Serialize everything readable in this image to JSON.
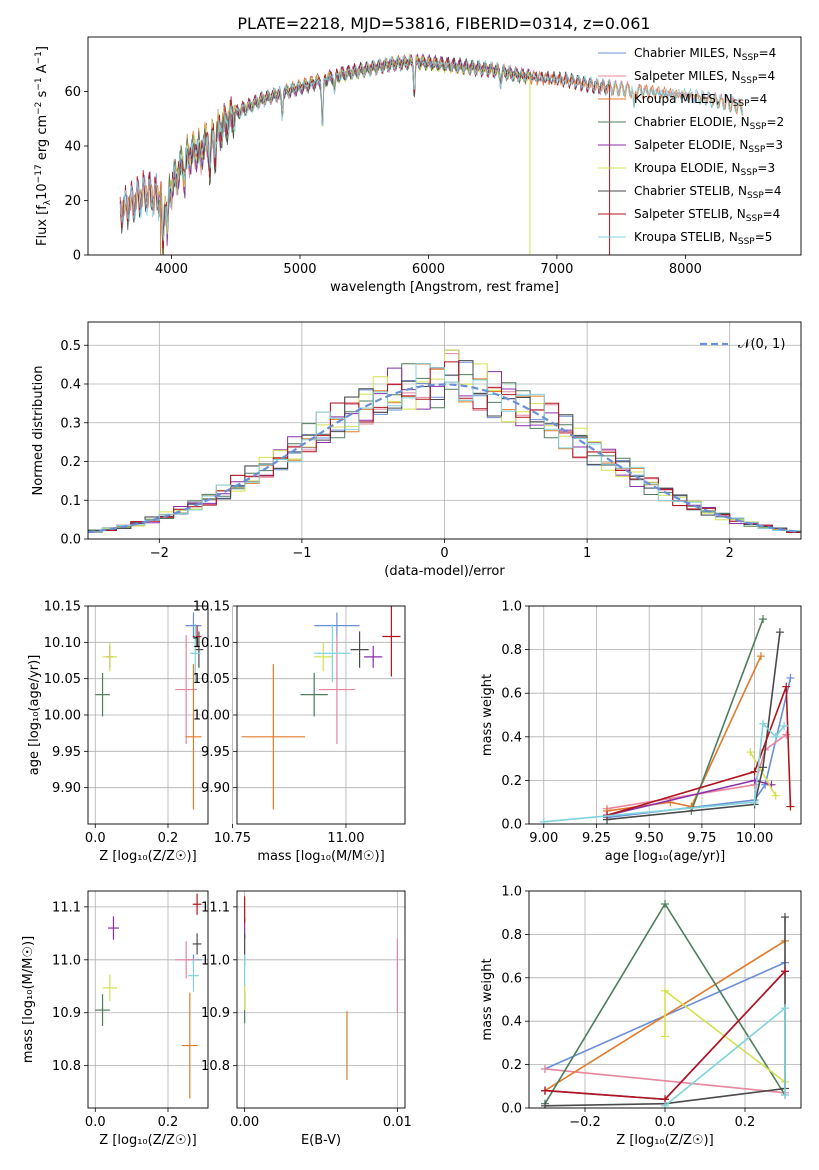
{
  "title": "PLATE=2218, MJD=53816, FIBERID=0314, z=0.061",
  "colors": [
    "#6a8fd8",
    "#e8859f",
    "#e07b2a",
    "#4f7d5c",
    "#8a2fa8",
    "#d4e050",
    "#4a4a4a",
    "#b0151e",
    "#7fd4dc"
  ],
  "chart_data": [
    {
      "id": "spectrum",
      "type": "line",
      "title": "PLATE=2218, MJD=53816, FIBERID=0314, z=0.061",
      "xlabel": "wavelength [Angstrom, rest frame]",
      "ylabel_parts": [
        "Flux [f",
        "λ",
        "10",
        "−17",
        " erg cm",
        "−2",
        " s",
        "−1",
        " A",
        "−1",
        "]"
      ],
      "xlim": [
        3350,
        8900
      ],
      "ylim": [
        0,
        80
      ],
      "xticks": [
        4000,
        5000,
        6000,
        7000,
        8000
      ],
      "yticks": [
        0,
        20,
        40,
        60
      ],
      "legend_position": "top-right",
      "legend": [
        {
          "label": "Chabrier MILES, N",
          "sub": "SSP",
          "suffix": "=4"
        },
        {
          "label": "Salpeter MILES, N",
          "sub": "SSP",
          "suffix": "=4"
        },
        {
          "label": "Kroupa MILES, N",
          "sub": "SSP",
          "suffix": "=4"
        },
        {
          "label": "Chabrier ELODIE, N",
          "sub": "SSP",
          "suffix": "=2"
        },
        {
          "label": "Salpeter ELODIE, N",
          "sub": "SSP",
          "suffix": "=3"
        },
        {
          "label": "Kroupa ELODIE, N",
          "sub": "SSP",
          "suffix": "=3"
        },
        {
          "label": "Chabrier STELIB, N",
          "sub": "SSP",
          "suffix": "=4"
        },
        {
          "label": "Salpeter STELIB, N",
          "sub": "SSP",
          "suffix": "=4"
        },
        {
          "label": "Kroupa STELIB, N",
          "sub": "SSP",
          "suffix": "=5"
        }
      ],
      "continuum": [
        [
          3600,
          16
        ],
        [
          3800,
          23
        ],
        [
          3950,
          20
        ],
        [
          4100,
          35
        ],
        [
          4300,
          42
        ],
        [
          4500,
          52
        ],
        [
          4700,
          57
        ],
        [
          4900,
          60
        ],
        [
          5100,
          63
        ],
        [
          5300,
          66
        ],
        [
          5500,
          68
        ],
        [
          5700,
          70
        ],
        [
          5900,
          71
        ],
        [
          6100,
          70
        ],
        [
          6300,
          69
        ],
        [
          6500,
          68
        ],
        [
          6700,
          66
        ],
        [
          6900,
          65
        ],
        [
          7100,
          64
        ],
        [
          7300,
          62
        ],
        [
          7500,
          61
        ],
        [
          7700,
          60
        ],
        [
          7900,
          59
        ],
        [
          8100,
          58
        ],
        [
          8300,
          56
        ],
        [
          8450,
          54
        ]
      ],
      "dips": [
        [
          3933,
          20
        ],
        [
          3968,
          15
        ],
        [
          4102,
          8
        ],
        [
          4226,
          5
        ],
        [
          4300,
          12
        ],
        [
          4340,
          8
        ],
        [
          4861,
          8
        ],
        [
          5175,
          18
        ],
        [
          5270,
          5
        ],
        [
          5890,
          12
        ],
        [
          6563,
          4
        ],
        [
          7600,
          8
        ]
      ],
      "drops": [
        {
          "series": 2,
          "x": 3915
        },
        {
          "series": 5,
          "x": 6790
        },
        {
          "series": 7,
          "x": 7410
        }
      ],
      "series_x_limits": [
        [
          3600,
          8450
        ],
        [
          3600,
          8450
        ],
        [
          3600,
          8450
        ],
        [
          3900,
          6790
        ],
        [
          3900,
          6790
        ],
        [
          3900,
          6790
        ],
        [
          3600,
          7410
        ],
        [
          3600,
          7410
        ],
        [
          3600,
          8450
        ]
      ]
    },
    {
      "id": "residuals",
      "type": "step-histogram",
      "xlabel": "(data-model)/error",
      "ylabel": "Normed distribution",
      "xlim": [
        -2.5,
        2.5
      ],
      "ylim": [
        0,
        0.56
      ],
      "xticks": [
        -2,
        -1,
        0,
        1,
        2
      ],
      "yticks": [
        0.0,
        0.1,
        0.2,
        0.3,
        0.4,
        0.5
      ],
      "grid": true,
      "bin_width": 0.1,
      "legend_position": "top-right",
      "reference_label": "𝒩(0, 1)",
      "reference_color": "#6a8fd8",
      "peaks": [
        0.45,
        0.52,
        0.44,
        0.42,
        0.53,
        0.53,
        0.42,
        0.46,
        0.44
      ]
    },
    {
      "id": "age_vs_Z",
      "type": "errorbar",
      "xlabel": "Z [log₁₀(Z/Z☉)]",
      "ylabel": "age  [log₁₀(age/yr)]",
      "xlim": [
        -0.02,
        0.31
      ],
      "ylim": [
        9.85,
        10.15
      ],
      "xticks": [
        0.0,
        0.2
      ],
      "yticks": [
        9.9,
        9.95,
        10.0,
        10.05,
        10.1,
        10.15
      ],
      "points": [
        {
          "s": 0,
          "x": 0.27,
          "y": 10.123,
          "xe": 0.022,
          "ye": 0.018
        },
        {
          "s": 1,
          "x": 0.25,
          "y": 10.035,
          "xe": 0.03,
          "ye": 0.075
        },
        {
          "s": 2,
          "x": 0.27,
          "y": 9.97,
          "xe": 0.022,
          "ye": 0.1
        },
        {
          "s": 3,
          "x": 0.02,
          "y": 10.028,
          "xe": 0.02,
          "ye": 0.03
        },
        {
          "s": 4,
          "x": 0.04,
          "y": 10.08,
          "xe": 0.01,
          "ye": 0.015
        },
        {
          "s": 5,
          "x": 0.04,
          "y": 10.08,
          "xe": 0.02,
          "ye": 0.02
        },
        {
          "s": 6,
          "x": 0.285,
          "y": 10.09,
          "xe": 0.012,
          "ye": 0.025
        },
        {
          "s": 7,
          "x": 0.28,
          "y": 10.108,
          "xe": 0.012,
          "ye": 0.015
        },
        {
          "s": 8,
          "x": 0.275,
          "y": 10.085,
          "xe": 0.015,
          "ye": 0.04
        }
      ]
    },
    {
      "id": "age_vs_mass",
      "type": "errorbar",
      "xlabel": "mass [log₁₀(M/M☉)]",
      "ylabel": "",
      "xlim": [
        10.76,
        11.13
      ],
      "ylim": [
        9.85,
        10.15
      ],
      "xticks": [
        10.75,
        11.0
      ],
      "yticks": [
        9.9,
        9.95,
        10.0,
        10.05,
        10.1,
        10.15
      ],
      "points": [
        {
          "s": 0,
          "x": 10.98,
          "y": 10.123,
          "xe": 0.05,
          "ye": 0.018
        },
        {
          "s": 1,
          "x": 10.98,
          "y": 10.035,
          "xe": 0.04,
          "ye": 0.075
        },
        {
          "s": 2,
          "x": 10.84,
          "y": 9.97,
          "xe": 0.07,
          "ye": 0.1
        },
        {
          "s": 3,
          "x": 10.93,
          "y": 10.028,
          "xe": 0.03,
          "ye": 0.03
        },
        {
          "s": 4,
          "x": 11.06,
          "y": 10.08,
          "xe": 0.02,
          "ye": 0.015
        },
        {
          "s": 5,
          "x": 10.95,
          "y": 10.08,
          "xe": 0.02,
          "ye": 0.02
        },
        {
          "s": 6,
          "x": 11.03,
          "y": 10.09,
          "xe": 0.02,
          "ye": 0.025
        },
        {
          "s": 7,
          "x": 11.1,
          "y": 10.108,
          "xe": 0.02,
          "ye": 0.055
        },
        {
          "s": 8,
          "x": 10.97,
          "y": 10.085,
          "xe": 0.04,
          "ye": 0.04
        }
      ]
    },
    {
      "id": "mw_vs_age",
      "type": "line",
      "xlabel": "age  [log₁₀(age/yr)]",
      "ylabel": "mass weight",
      "xlim": [
        8.93,
        10.22
      ],
      "ylim": [
        0,
        1.0
      ],
      "xticks": [
        9.0,
        9.25,
        9.5,
        9.75,
        10.0
      ],
      "xtick_labels": [
        "9.00",
        "9.25",
        "9.50",
        "9.75",
        "10.00"
      ],
      "yticks": [
        0.0,
        0.2,
        0.4,
        0.6,
        0.8,
        1.0
      ],
      "yticks_labels": [
        "0.0",
        "0.2",
        "0.4",
        "0.6",
        "0.8",
        "1.0"
      ],
      "series": [
        {
          "s": 0,
          "x": [
            9.3,
            10.0,
            10.05,
            10.17
          ],
          "y": [
            0.03,
            0.11,
            0.18,
            0.67
          ]
        },
        {
          "s": 1,
          "x": [
            9.3,
            10.0,
            10.05,
            10.15
          ],
          "y": [
            0.07,
            0.18,
            0.34,
            0.41
          ]
        },
        {
          "s": 2,
          "x": [
            9.3,
            9.6,
            9.7,
            10.03
          ],
          "y": [
            0.06,
            0.1,
            0.08,
            0.77
          ]
        },
        {
          "s": 3,
          "x": [
            9.7,
            10.04
          ],
          "y": [
            0.06,
            0.94
          ]
        },
        {
          "s": 4,
          "x": [
            9.3,
            10.0,
            10.08
          ],
          "y": [
            0.04,
            0.2,
            0.18
          ]
        },
        {
          "s": 5,
          "x": [
            9.98,
            10.1
          ],
          "y": [
            0.33,
            0.13
          ]
        },
        {
          "s": 6,
          "x": [
            9.3,
            10.0,
            10.04,
            10.12
          ],
          "y": [
            0.02,
            0.09,
            0.26,
            0.88
          ]
        },
        {
          "s": 7,
          "x": [
            9.3,
            10.0,
            10.15,
            10.17
          ],
          "y": [
            0.04,
            0.24,
            0.63,
            0.08
          ]
        },
        {
          "s": 8,
          "x": [
            9.0,
            10.0,
            10.04,
            10.1,
            10.14
          ],
          "y": [
            0.01,
            0.1,
            0.46,
            0.4,
            0.45
          ]
        }
      ]
    },
    {
      "id": "mass_vs_Z",
      "type": "errorbar",
      "xlabel": "Z [log₁₀(Z/Z☉)]",
      "ylabel": "mass [log₁₀(M/M☉)]",
      "xlim": [
        -0.02,
        0.31
      ],
      "ylim": [
        10.72,
        11.13
      ],
      "xticks": [
        0.0,
        0.2
      ],
      "yticks": [
        10.8,
        10.9,
        11.0,
        11.1
      ],
      "points": [
        {
          "s": 0,
          "x": 0.27,
          "y": 11.0,
          "xe": 0.022,
          "ye": 0.01
        },
        {
          "s": 1,
          "x": 0.25,
          "y": 11.0,
          "xe": 0.03,
          "ye": 0.035
        },
        {
          "s": 2,
          "x": 0.26,
          "y": 10.838,
          "xe": 0.022,
          "ye": 0.1
        },
        {
          "s": 3,
          "x": 0.02,
          "y": 10.905,
          "xe": 0.02,
          "ye": 0.03
        },
        {
          "s": 4,
          "x": 0.05,
          "y": 11.06,
          "xe": 0.015,
          "ye": 0.022
        },
        {
          "s": 5,
          "x": 0.04,
          "y": 10.947,
          "xe": 0.02,
          "ye": 0.025
        },
        {
          "s": 6,
          "x": 0.28,
          "y": 11.03,
          "xe": 0.012,
          "ye": 0.02
        },
        {
          "s": 7,
          "x": 0.28,
          "y": 11.105,
          "xe": 0.012,
          "ye": 0.02
        },
        {
          "s": 8,
          "x": 0.27,
          "y": 10.97,
          "xe": 0.015,
          "ye": 0.03
        }
      ]
    },
    {
      "id": "mass_vs_ebv",
      "type": "errorbar",
      "xlabel": "E(B-V)",
      "ylabel": "",
      "xlim": [
        -0.0005,
        0.0105
      ],
      "ylim": [
        10.72,
        11.13
      ],
      "xticks": [
        0.0,
        0.01
      ],
      "xtick_labels": [
        "0.00",
        "0.01"
      ],
      "yticks": [
        10.8,
        10.9,
        11.0,
        11.1
      ],
      "points": [
        {
          "s": 0,
          "x": 0.0,
          "y": 11.0,
          "xe": 0,
          "ye": 0.012
        },
        {
          "s": 1,
          "x": 0.01,
          "y": 10.97,
          "xe": 0,
          "ye": 0.07
        },
        {
          "s": 2,
          "x": 0.0067,
          "y": 10.838,
          "xe": 0,
          "ye": 0.065
        },
        {
          "s": 3,
          "x": 0.0,
          "y": 10.91,
          "xe": 0,
          "ye": 0.03
        },
        {
          "s": 4,
          "x": 0.0,
          "y": 11.06,
          "xe": 0,
          "ye": 0.02
        },
        {
          "s": 5,
          "x": 0.0,
          "y": 10.93,
          "xe": 0,
          "ye": 0.025
        },
        {
          "s": 6,
          "x": 0.0,
          "y": 11.03,
          "xe": 0,
          "ye": 0.02
        },
        {
          "s": 7,
          "x": 0.0,
          "y": 11.095,
          "xe": 0,
          "ye": 0.025
        },
        {
          "s": 8,
          "x": 0.0,
          "y": 10.98,
          "xe": 0,
          "ye": 0.03
        }
      ]
    },
    {
      "id": "mw_vs_Z",
      "type": "line",
      "xlabel": "Z [log₁₀(Z/Z☉)]",
      "ylabel": "mass weight",
      "xlim": [
        -0.34,
        0.34
      ],
      "ylim": [
        0,
        1.0
      ],
      "xticks": [
        -0.2,
        0.0,
        0.2
      ],
      "xtick_labels": [
        "−0.2",
        "0.0",
        "0.2"
      ],
      "yticks": [
        0.0,
        0.2,
        0.4,
        0.6,
        0.8,
        1.0
      ],
      "yticks_labels": [
        "0.0",
        "0.2",
        "0.4",
        "0.6",
        "0.8",
        "1.0"
      ],
      "series": [
        {
          "s": 0,
          "x": [
            -0.3,
            0.3
          ],
          "y": [
            0.18,
            0.67
          ]
        },
        {
          "s": 1,
          "x": [
            -0.3,
            0.3
          ],
          "y": [
            0.18,
            0.07
          ]
        },
        {
          "s": 2,
          "x": [
            -0.3,
            0.3
          ],
          "y": [
            0.08,
            0.77
          ]
        },
        {
          "s": 3,
          "x": [
            -0.3,
            0.0,
            0.3
          ],
          "y": [
            0.02,
            0.94,
            0.06
          ]
        },
        {
          "s": 4,
          "x": [
            -0.3,
            0.0,
            0.3
          ],
          "y": [
            0.08,
            0.04,
            0.63
          ]
        },
        {
          "s": 5,
          "x": [
            0.0,
            0.0,
            0.3
          ],
          "y": [
            0.33,
            0.54,
            0.12
          ]
        },
        {
          "s": 6,
          "x": [
            -0.3,
            0.0,
            0.3,
            0.3
          ],
          "y": [
            0.01,
            0.02,
            0.09,
            0.88
          ]
        },
        {
          "s": 7,
          "x": [
            -0.3,
            0.0,
            0.3
          ],
          "y": [
            0.08,
            0.04,
            0.63
          ]
        },
        {
          "s": 8,
          "x": [
            0.0,
            0.3,
            0.3
          ],
          "y": [
            0.01,
            0.46,
            0.06
          ]
        }
      ]
    }
  ]
}
